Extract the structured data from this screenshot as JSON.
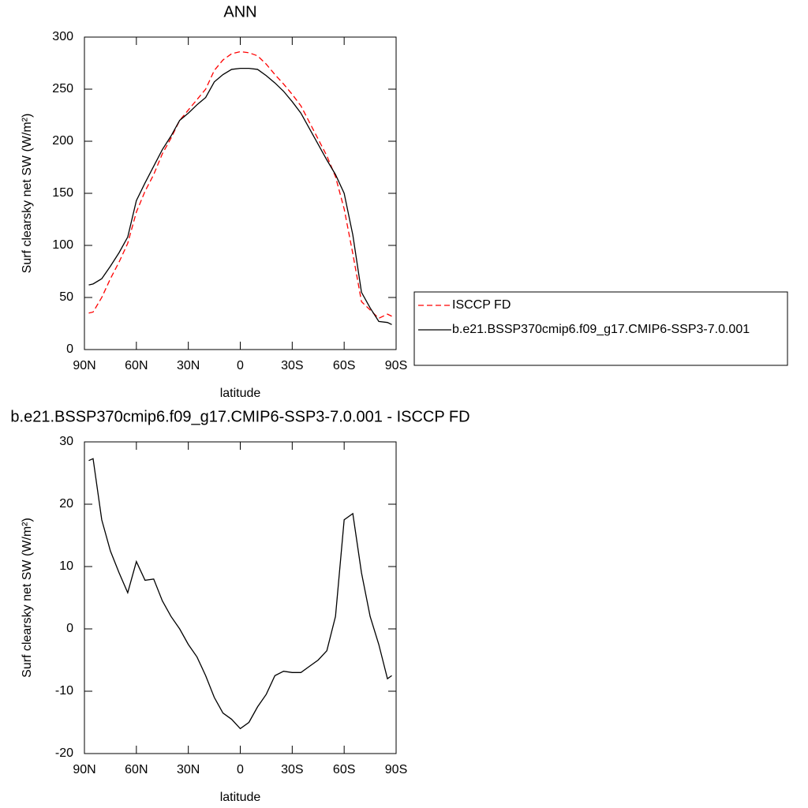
{
  "chart_data": [
    {
      "type": "line",
      "title": "ANN",
      "x_label": "latitude",
      "y_label": "Surf clearsky net SW (W/m²)",
      "x": [
        87.5,
        85,
        80,
        75,
        70,
        65,
        60,
        55,
        50,
        45,
        40,
        35,
        30,
        25,
        20,
        15,
        10,
        5,
        0,
        -5,
        -10,
        -15,
        -20,
        -25,
        -30,
        -35,
        -40,
        -45,
        -50,
        -55,
        -60,
        -65,
        -70,
        -75,
        -80,
        -85,
        -87.5
      ],
      "xlim": [
        90,
        -90
      ],
      "xticks": [
        {
          "value": 90,
          "label": "90N"
        },
        {
          "value": 60,
          "label": "60N"
        },
        {
          "value": 30,
          "label": "30N"
        },
        0,
        {
          "value": -30,
          "label": "30S"
        },
        {
          "value": -60,
          "label": "60S"
        },
        {
          "value": -90,
          "label": "90S"
        }
      ],
      "ylim": [
        0,
        300
      ],
      "yticks": [
        0,
        50,
        100,
        150,
        200,
        250,
        300
      ],
      "legend": "right",
      "series": [
        {
          "name": "ISCCP FD",
          "color": "#ff0000",
          "dash": "dashed",
          "values": [
            35,
            36,
            50,
            68,
            84,
            102,
            132,
            152,
            168,
            188,
            203,
            220,
            230,
            240,
            250,
            268,
            278,
            284,
            286,
            285,
            282,
            274,
            264,
            255,
            245,
            234,
            218,
            202,
            186,
            166,
            135,
            92,
            46,
            38,
            30,
            34,
            32
          ]
        },
        {
          "name": "b.e21.BSSP370cmip6.f09_g17.CMIP6-SSP3-7.0.001",
          "color": "#000000",
          "dash": "solid",
          "values": [
            62,
            63,
            68,
            80,
            93,
            108,
            143,
            160,
            176,
            192,
            205,
            220,
            227,
            235,
            242,
            257,
            264,
            269,
            270,
            270,
            269,
            263,
            256,
            248,
            238,
            227,
            212,
            197,
            182,
            168,
            150,
            110,
            55,
            40,
            27,
            26,
            24
          ]
        }
      ]
    },
    {
      "type": "line",
      "title": "b.e21.BSSP370cmip6.f09_g17.CMIP6-SSP3-7.0.001 - ISCCP FD",
      "x_label": "latitude",
      "y_label": "Surf clearsky net SW (W/m²)",
      "x": [
        87.5,
        85,
        80,
        75,
        70,
        65,
        60,
        55,
        50,
        45,
        40,
        35,
        30,
        25,
        20,
        15,
        10,
        5,
        0,
        -5,
        -10,
        -15,
        -20,
        -25,
        -30,
        -35,
        -40,
        -45,
        -50,
        -55,
        -60,
        -65,
        -70,
        -75,
        -80,
        -85,
        -87.5
      ],
      "xlim": [
        90,
        -90
      ],
      "xticks": [
        {
          "value": 90,
          "label": "90N"
        },
        {
          "value": 60,
          "label": "60N"
        },
        {
          "value": 30,
          "label": "30N"
        },
        0,
        {
          "value": -30,
          "label": "30S"
        },
        {
          "value": -60,
          "label": "60S"
        },
        {
          "value": -90,
          "label": "90S"
        }
      ],
      "ylim": [
        -20,
        30
      ],
      "yticks": [
        -20,
        -10,
        0,
        10,
        20,
        30
      ],
      "series": [
        {
          "color": "#000000",
          "dash": "solid",
          "values": [
            27,
            27.3,
            17.5,
            12.5,
            9,
            5.8,
            10.8,
            7.8,
            8,
            4.5,
            2,
            0,
            -2.5,
            -4.5,
            -7.5,
            -11,
            -13.5,
            -14.5,
            -16,
            -15,
            -12.5,
            -10.5,
            -7.5,
            -6.8,
            -7,
            -7,
            -6,
            -5,
            -3.5,
            2,
            17.5,
            18.5,
            9,
            2,
            -2.5,
            -8,
            -7.5
          ]
        }
      ]
    }
  ]
}
